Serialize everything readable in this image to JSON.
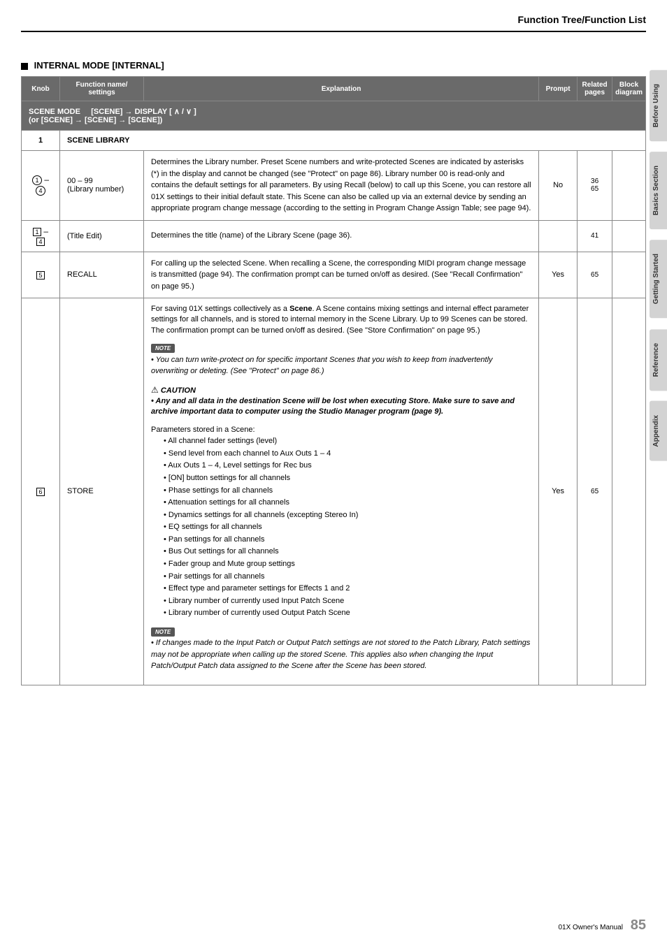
{
  "header": {
    "title": "Function Tree/Function List"
  },
  "sectionHeading": "INTERNAL MODE [INTERNAL]",
  "tableHeaders": {
    "knob": "Knob",
    "funcName": "Function name/\nsettings",
    "explanation": "Explanation",
    "prompt": "Prompt",
    "relatedPages": "Related pages",
    "blockDiagram": "Block diagram"
  },
  "sceneMode": {
    "label": "SCENE MODE",
    "path": "[SCENE] → DISPLAY [ ∧ / ∨ ]",
    "alt": "(or [SCENE] → [SCENE] → [SCENE])"
  },
  "sceneLibrary": {
    "num": "1",
    "label": "SCENE LIBRARY"
  },
  "rows": {
    "r1": {
      "knob": "① – ④",
      "func": "00 – 99\n(Library number)",
      "expl": "Determines the Library number. Preset Scene numbers and write-protected Scenes are indicated by asterisks (*) in the display and cannot be changed (see \"Protect\" on page 86). Library number 00 is read-only and contains the default settings for all parameters. By using Recall (below) to call up this Scene, you can restore all 01X settings to their initial default state. This Scene can also be called up via an external device by sending an appropriate program change message (according to the setting in Program Change Assign Table; see page 94).",
      "prompt": "No",
      "pages": "36\n65"
    },
    "r2": {
      "knob": "[1] – [4]",
      "func": "(Title Edit)",
      "expl": "Determines the title (name) of the Library Scene (page 36).",
      "prompt": "",
      "pages": "41"
    },
    "r3": {
      "knob": "[5]",
      "func": "RECALL",
      "expl": "For calling up the selected Scene. When recalling a Scene, the corresponding MIDI program change message is transmitted (page 94). The confirmation prompt can be turned on/off as desired. (See \"Recall Confirmation\" on page 95.)",
      "prompt": "Yes",
      "pages": "65"
    },
    "r4": {
      "knob": "[6]",
      "func": "STORE",
      "para1": "For saving 01X settings collectively as a Scene. A Scene contains mixing settings and internal effect parameter settings for all channels, and is stored to internal memory in the Scene Library. Up to 99 Scenes can be stored. The confirmation prompt can be turned on/off as desired. (See \"Store Confirmation\" on page 95.)",
      "note1": "You can turn write-protect on for specific important Scenes that you wish to keep from inadvertently overwriting or deleting. (See \"Protect\" on page 86.)",
      "cautionLabel": "CAUTION",
      "cautionText": "Any and all data in the destination Scene will be lost when executing Store. Make sure to save and archive important data to computer using the Studio Manager program (page 9).",
      "paramsIntro": "Parameters stored in a Scene:",
      "params": [
        "All channel fader settings (level)",
        "Send level from each channel to Aux Outs 1 – 4",
        "Aux Outs 1 – 4, Level settings for Rec bus",
        "[ON] button settings for all channels",
        "Phase settings for all channels",
        "Attenuation settings for all channels",
        "Dynamics settings for all channels (excepting Stereo In)",
        "EQ settings for all channels",
        "Pan settings for all channels",
        "Bus Out settings for all channels",
        "Fader group and Mute group settings",
        "Pair settings for all channels",
        "Effect type and parameter settings for Effects 1 and 2",
        "Library number of currently used Input Patch Scene",
        "Library number of currently used Output Patch Scene"
      ],
      "note2": "If changes made to the Input Patch or Output Patch settings are not stored to the Patch Library, Patch settings may not be appropriate when calling up the stored Scene. This applies also when changing the Input Patch/Output Patch data assigned to the Scene after the Scene has been stored.",
      "prompt": "Yes",
      "pages": "65"
    }
  },
  "sideTabs": [
    "Before Using",
    "Basics Section",
    "Getting Started",
    "Reference",
    "Appendix"
  ],
  "footer": {
    "text": "01X  Owner's Manual",
    "pageNum": "85"
  },
  "noteLabel": "NOTE"
}
